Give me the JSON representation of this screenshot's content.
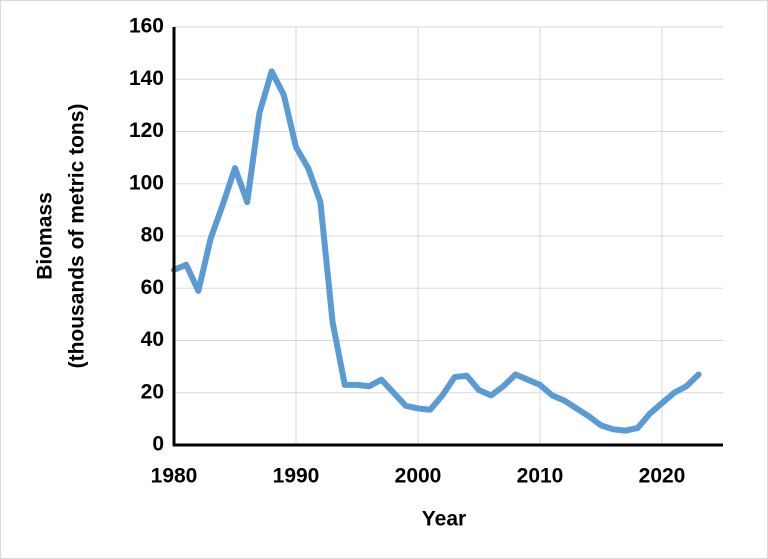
{
  "chart_data": {
    "type": "line",
    "xlabel": "Year",
    "ylabel": [
      "Biomass",
      "(thousands of metric tons)"
    ],
    "x": [
      1980,
      1981,
      1982,
      1983,
      1984,
      1985,
      1986,
      1987,
      1988,
      1989,
      1990,
      1991,
      1992,
      1993,
      1994,
      1995,
      1996,
      1997,
      1998,
      1999,
      2000,
      2001,
      2002,
      2003,
      2004,
      2005,
      2006,
      2007,
      2008,
      2009,
      2010,
      2011,
      2012,
      2013,
      2014,
      2015,
      2016,
      2017,
      2018,
      2019,
      2020,
      2021,
      2022,
      2023
    ],
    "series": [
      {
        "color": "#5b9bd5",
        "values": [
          67,
          69,
          59,
          79,
          92,
          106,
          93,
          127,
          143,
          134,
          114,
          106,
          93,
          47,
          23,
          23,
          22.5,
          25,
          20,
          15,
          14,
          13.5,
          19,
          26,
          26.5,
          21,
          19,
          22.5,
          27,
          25,
          23,
          19,
          17,
          14,
          11,
          7.5,
          6,
          5.5,
          6.5,
          12,
          16,
          20,
          22.5,
          27
        ]
      }
    ],
    "xlim": [
      1980,
      2025
    ],
    "xticks": [
      1980,
      1990,
      2000,
      2010,
      2020
    ],
    "ylim": [
      0,
      160
    ],
    "yticks": [
      0,
      20,
      40,
      60,
      80,
      100,
      120,
      140,
      160
    ],
    "grid": true
  }
}
